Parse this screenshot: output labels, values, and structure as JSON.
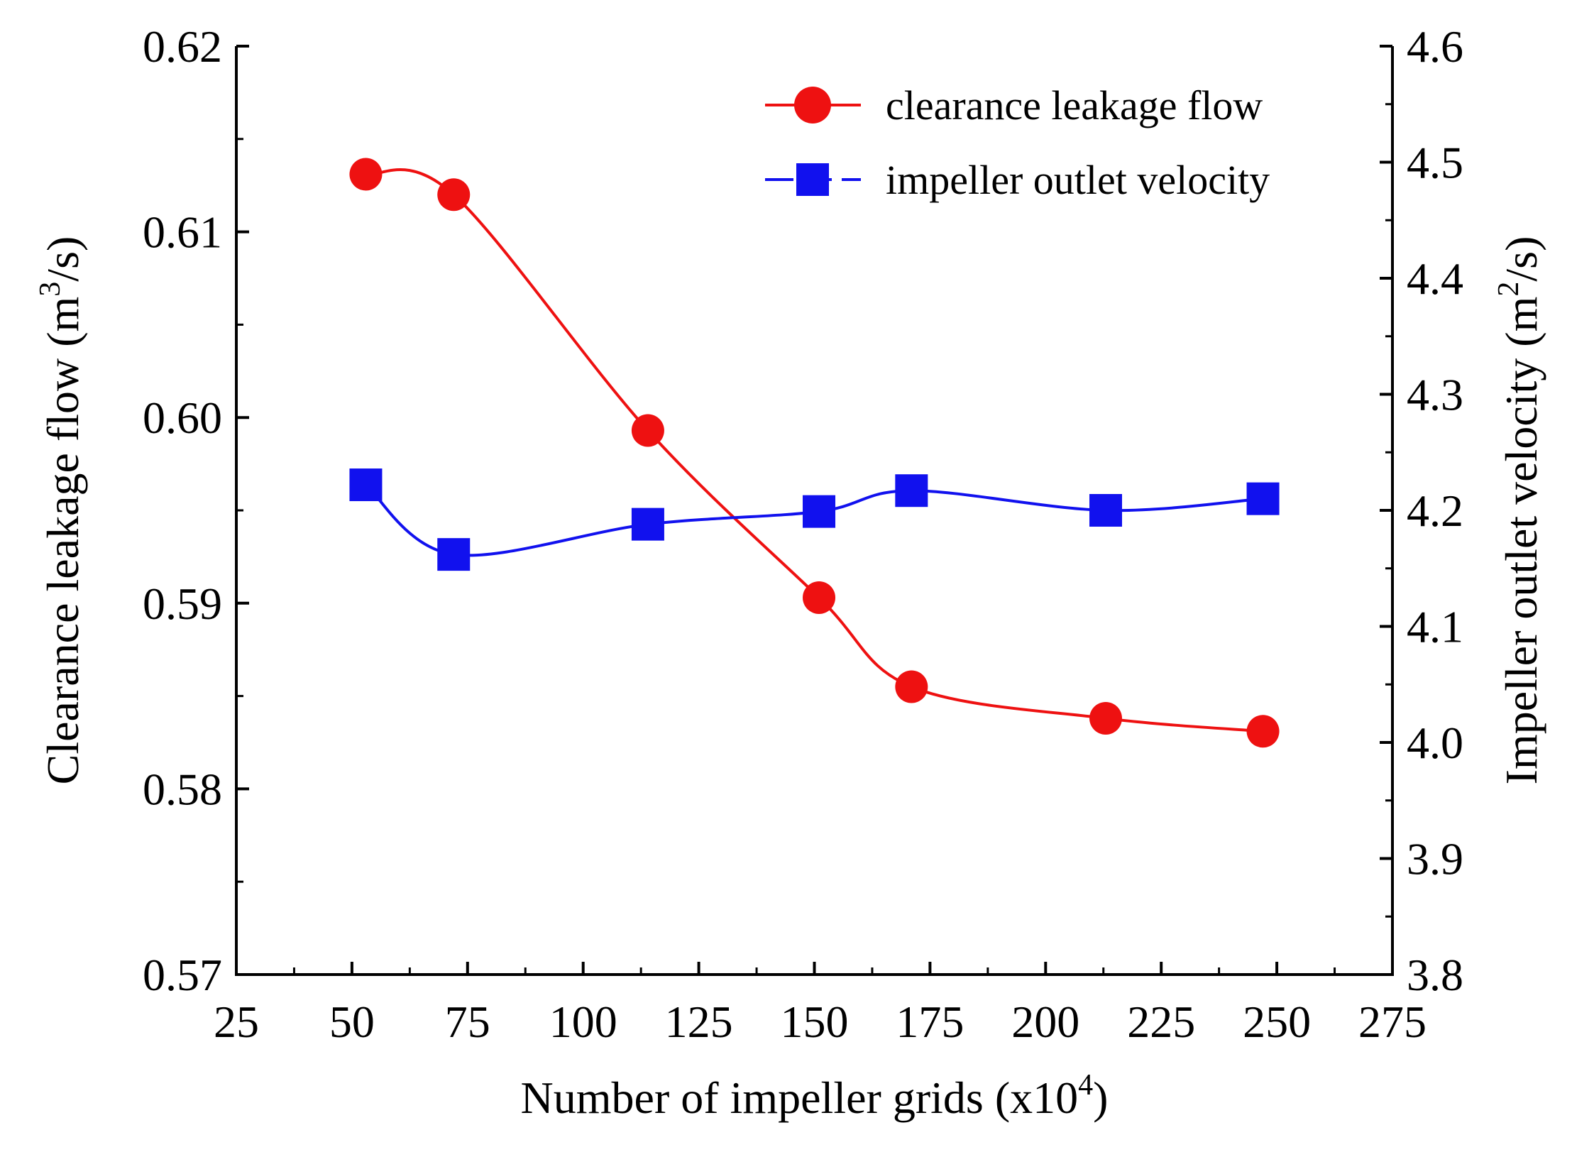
{
  "chart_data": {
    "type": "line",
    "title": "",
    "xlabel": {
      "main": "Number of impeller grids (x10",
      "sup": "4",
      "end": ")"
    },
    "ylabel_left": {
      "main": "Clearance leakage flow (m",
      "sup": "3",
      "end": "/s)"
    },
    "ylabel_right": {
      "main": "Impeller outlet velocity (m",
      "sup": "2",
      "end": "/s)"
    },
    "xlim": [
      25,
      275
    ],
    "ylim_left": [
      0.57,
      0.62
    ],
    "ylim_right": [
      3.8,
      4.6
    ],
    "x_ticks": [
      "25",
      "50",
      "75",
      "100",
      "125",
      "150",
      "175",
      "200",
      "225",
      "250",
      "275"
    ],
    "y_left_ticks": [
      "0.57",
      "0.58",
      "0.59",
      "0.60",
      "0.61",
      "0.62"
    ],
    "y_right_ticks": [
      "3.8",
      "3.9",
      "4.0",
      "4.1",
      "4.2",
      "4.3",
      "4.4",
      "4.5",
      "4.6"
    ],
    "legend_position": "top-right",
    "grid": false,
    "series": [
      {
        "name": "clearance leakage flow",
        "axis": "left",
        "color": "#ee1111",
        "marker": "circle",
        "line_style": "solid",
        "x": [
          53,
          72,
          114,
          151,
          171,
          213,
          247
        ],
        "values": [
          0.6131,
          0.612,
          0.5993,
          0.5903,
          0.5855,
          0.5838,
          0.5831
        ]
      },
      {
        "name": "impeller outlet velocity",
        "axis": "right",
        "color": "#1111ee",
        "marker": "square",
        "line_style": "dash",
        "x": [
          53,
          72,
          114,
          151,
          171,
          213,
          247
        ],
        "values": [
          4.222,
          4.162,
          4.188,
          4.199,
          4.217,
          4.2,
          4.21
        ]
      }
    ]
  }
}
